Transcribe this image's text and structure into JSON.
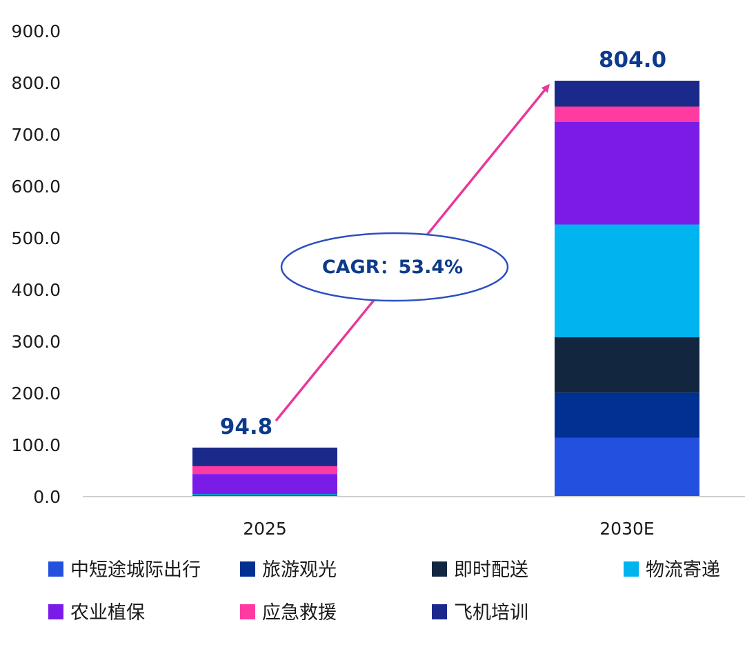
{
  "chart_data": {
    "type": "bar",
    "stacked": true,
    "categories": [
      "2025",
      "2030E"
    ],
    "ylim": [
      0,
      900
    ],
    "yticks": [
      "0.0",
      "100.0",
      "200.0",
      "300.0",
      "400.0",
      "500.0",
      "600.0",
      "700.0",
      "800.0",
      "900.0"
    ],
    "series": [
      {
        "name": "中短途城际出行",
        "color": "#2450e0",
        "values": [
          1.5,
          114
        ]
      },
      {
        "name": "旅游观光",
        "color": "#003192",
        "values": [
          1.0,
          87
        ]
      },
      {
        "name": "即时配送",
        "color": "#12263f",
        "values": [
          0.8,
          107
        ]
      },
      {
        "name": "物流寄递",
        "color": "#00b4f0",
        "values": [
          2.0,
          218
        ]
      },
      {
        "name": "农业植保",
        "color": "#7a1be8",
        "values": [
          38.5,
          198
        ]
      },
      {
        "name": "应急救援",
        "color": "#ff3aa0",
        "values": [
          15.0,
          30
        ]
      },
      {
        "name": "飞机培训",
        "color": "#1b2a8a",
        "values": [
          36.0,
          50
        ]
      }
    ],
    "totals": [
      "94.8",
      "804.0"
    ],
    "annotation": "CAGR：53.4%",
    "arrow_color": "#e8389a",
    "legend_position": "bottom"
  }
}
